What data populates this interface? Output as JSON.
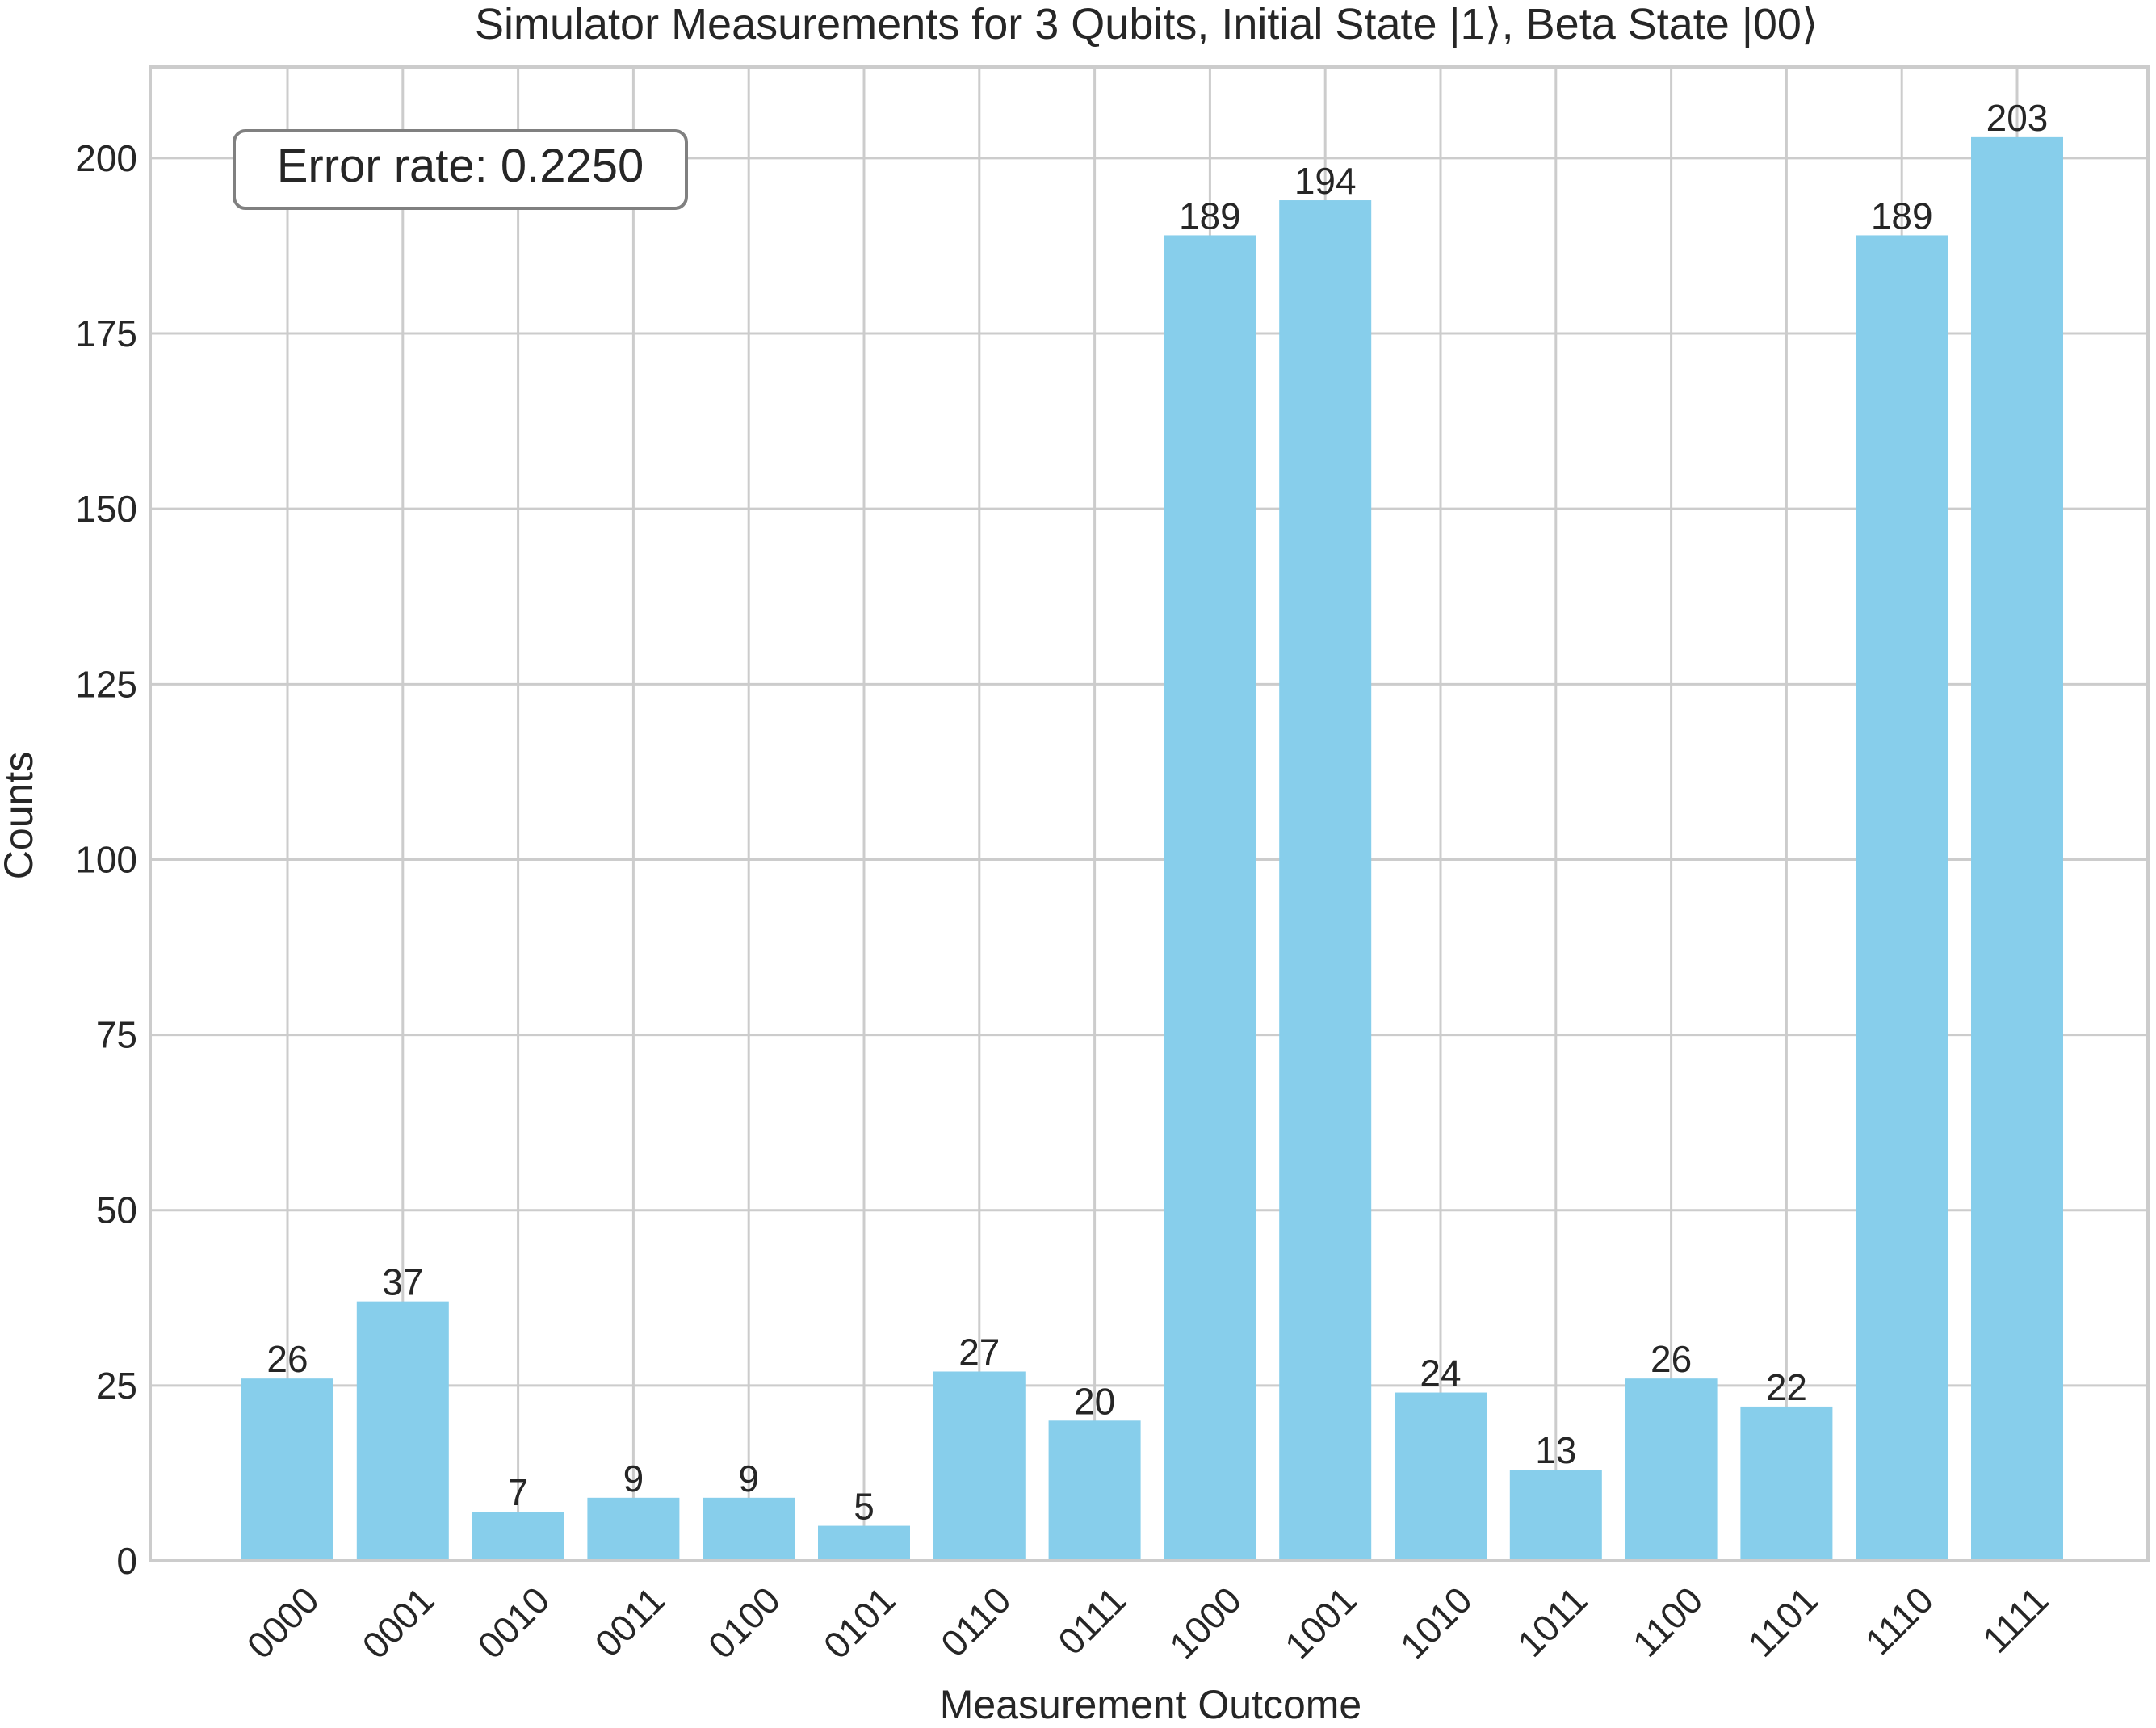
{
  "chart_data": {
    "type": "bar",
    "title": "Simulator Measurements for 3 Qubits, Initial State |1⟩, Beta State |00⟩",
    "xlabel": "Measurement Outcome",
    "ylabel": "Counts",
    "categories": [
      "0000",
      "0001",
      "0010",
      "0011",
      "0100",
      "0101",
      "0110",
      "0111",
      "1000",
      "1001",
      "1010",
      "1011",
      "1100",
      "1101",
      "1110",
      "1111"
    ],
    "values": [
      26,
      37,
      7,
      9,
      9,
      5,
      27,
      20,
      189,
      194,
      24,
      13,
      26,
      22,
      189,
      203
    ],
    "ylim": [
      0,
      213
    ],
    "yticks": [
      0,
      25,
      50,
      75,
      100,
      125,
      150,
      175,
      200
    ],
    "grid": true,
    "bar_color": "#87CEEB",
    "annotation": "Error rate: 0.2250",
    "annotation_position": "top-left"
  }
}
